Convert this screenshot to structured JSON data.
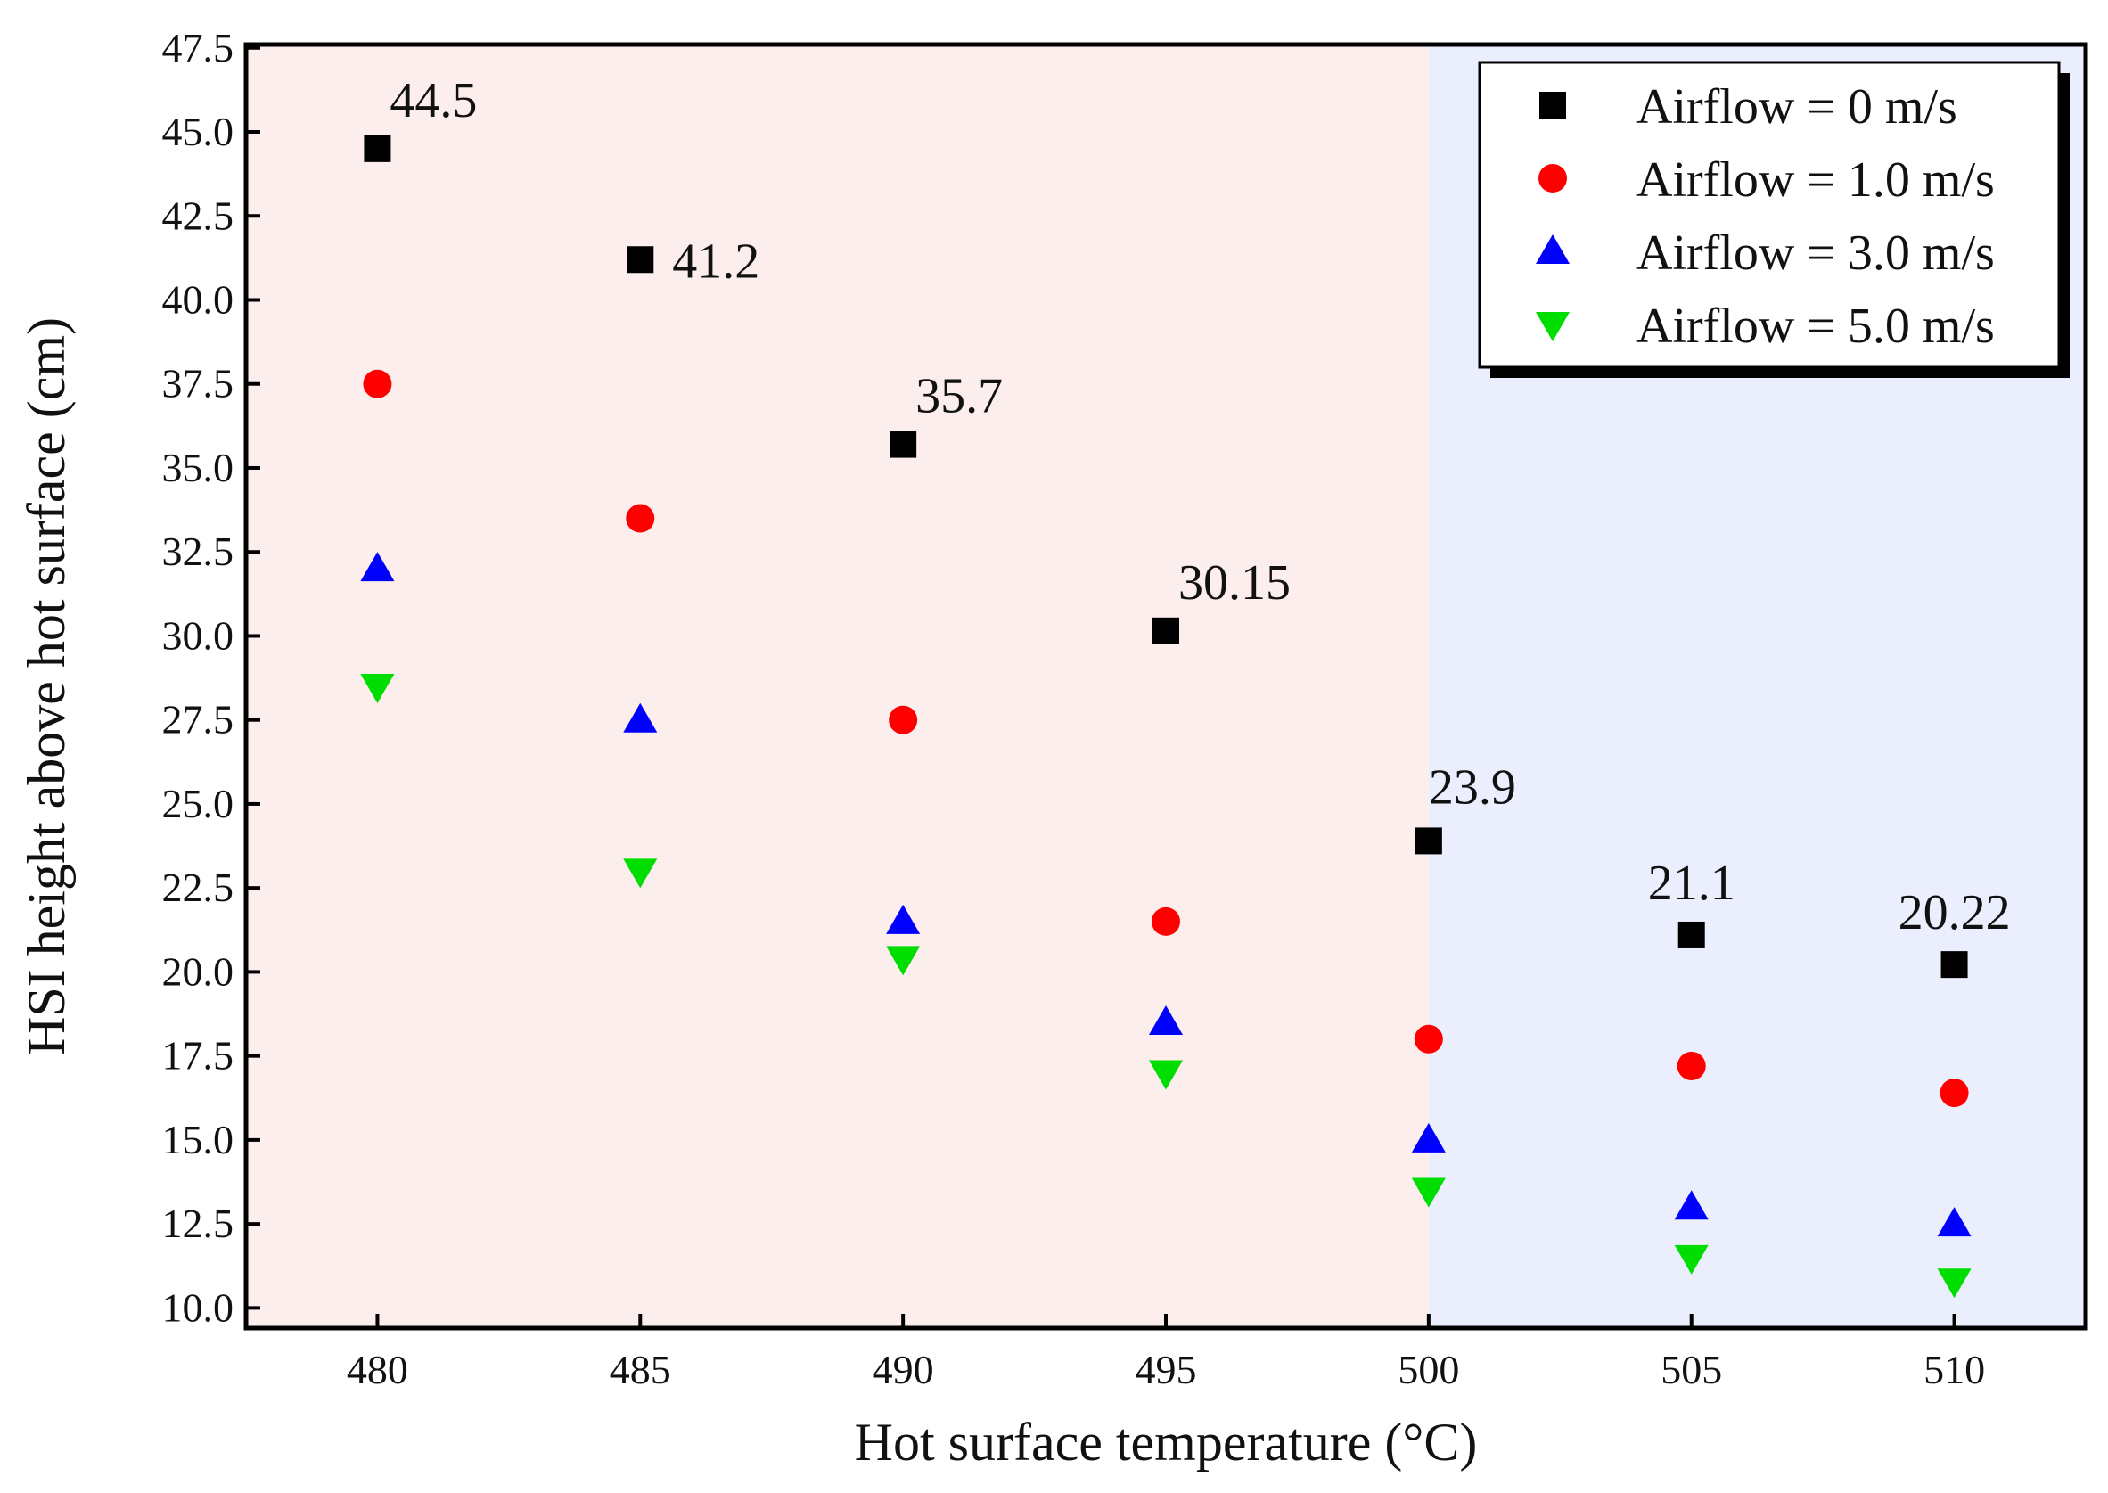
{
  "chart_data": {
    "type": "scatter",
    "title": "",
    "xlabel": "Hot surface temperature (°C)",
    "ylabel": "HSI height above hot surface (cm)",
    "xlim": [
      477.5,
      512.5
    ],
    "ylim": [
      9.4,
      47.6
    ],
    "x": [
      480,
      485,
      490,
      495,
      500,
      505,
      510
    ],
    "x_ticks": [
      480,
      485,
      490,
      495,
      500,
      505,
      510
    ],
    "x_tick_labels": [
      "480",
      "485",
      "490",
      "495",
      "500",
      "505",
      "510"
    ],
    "y_ticks": [
      10,
      12.5,
      15,
      17.5,
      20,
      22.5,
      25,
      27.5,
      30,
      32.5,
      35,
      37.5,
      40,
      42.5,
      45,
      47.5
    ],
    "y_tick_labels": [
      "10.0",
      "12.5",
      "15.0",
      "17.5",
      "20.0",
      "22.5",
      "25.0",
      "27.5",
      "30.0",
      "32.5",
      "35.0",
      "37.5",
      "40.0",
      "42.5",
      "45.0",
      "47.5"
    ],
    "regions": [
      {
        "x_from": 477.5,
        "x_to": 500,
        "color": "#fdeeee"
      },
      {
        "x_from": 500,
        "x_to": 512.5,
        "color": "#ebeffd"
      }
    ],
    "series": [
      {
        "name": "Airflow = 0 m/s",
        "marker": "square",
        "color": "#000000",
        "values": [
          44.5,
          41.2,
          35.7,
          30.15,
          23.9,
          21.1,
          20.22
        ]
      },
      {
        "name": "Airflow = 1.0 m/s",
        "marker": "circle",
        "color": "#ff0000",
        "values": [
          37.5,
          33.5,
          27.5,
          21.5,
          18.0,
          17.2,
          16.4
        ]
      },
      {
        "name": "Airflow = 3.0 m/s",
        "marker": "triangle-up",
        "color": "#0000ff",
        "values": [
          32.0,
          27.5,
          21.5,
          18.5,
          15.0,
          13.0,
          12.5
        ]
      },
      {
        "name": "Airflow = 5.0 m/s",
        "marker": "triangle-down",
        "color": "#00dd00",
        "values": [
          28.5,
          23.0,
          20.4,
          17.0,
          13.5,
          11.5,
          10.8
        ]
      }
    ],
    "annotations": [
      {
        "x": 480,
        "y": 44.5,
        "text": "44.5",
        "anchor": "upper-right"
      },
      {
        "x": 485,
        "y": 41.2,
        "text": "41.2",
        "anchor": "right"
      },
      {
        "x": 490,
        "y": 35.7,
        "text": "35.7",
        "anchor": "upper-right"
      },
      {
        "x": 495,
        "y": 30.15,
        "text": "30.15",
        "anchor": "upper-right"
      },
      {
        "x": 500,
        "y": 23.9,
        "text": "23.9",
        "anchor": "above-right"
      },
      {
        "x": 505,
        "y": 21.1,
        "text": "21.1",
        "anchor": "above"
      },
      {
        "x": 510,
        "y": 20.22,
        "text": "20.22",
        "anchor": "above"
      }
    ],
    "legend": {
      "position": "top-right"
    },
    "grid": false
  }
}
